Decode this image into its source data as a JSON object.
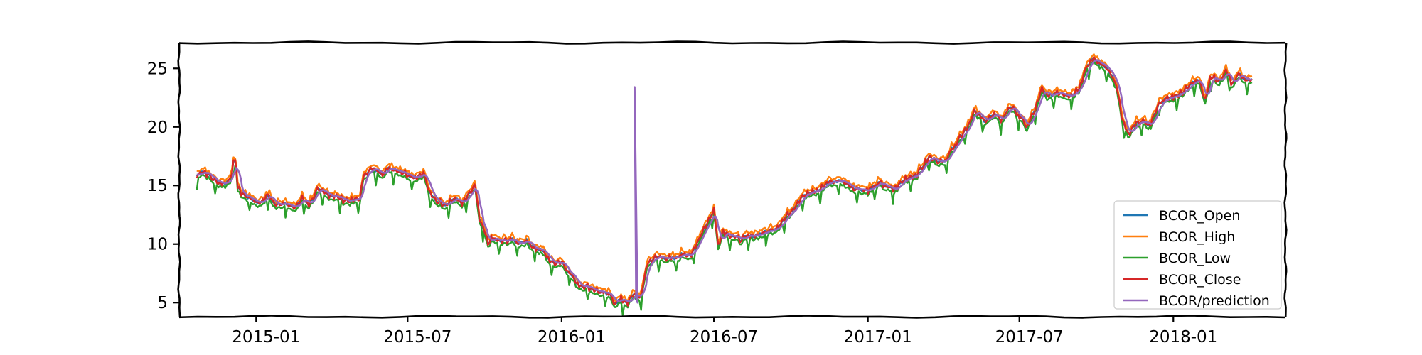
{
  "chart_data": {
    "type": "line",
    "title": "",
    "xlabel": "",
    "ylabel": "",
    "xlim": [
      "2014-10-01",
      "2018-05-15"
    ],
    "ylim": [
      3.8,
      27.2
    ],
    "yticks": [
      5,
      10,
      15,
      20,
      25
    ],
    "xticks": [
      "2015-01",
      "2015-07",
      "2016-01",
      "2016-07",
      "2017-01",
      "2017-07",
      "2018-01"
    ],
    "grid": false,
    "legend_position": "lower-right",
    "series": [
      {
        "name": "BCOR_Open",
        "color": "#1f77b4"
      },
      {
        "name": "BCOR_High",
        "color": "#ff7f0e"
      },
      {
        "name": "BCOR_Low",
        "color": "#2ca02c"
      },
      {
        "name": "BCOR_Close",
        "color": "#d62728"
      },
      {
        "name": "BCOR/prediction",
        "color": "#9467bd"
      }
    ],
    "close_points": [
      [
        "2014-10-22",
        15.8
      ],
      [
        "2014-10-28",
        16.3
      ],
      [
        "2014-11-05",
        15.9
      ],
      [
        "2014-11-15",
        15.3
      ],
      [
        "2014-11-25",
        15.2
      ],
      [
        "2014-12-01",
        15.6
      ],
      [
        "2014-12-05",
        17.0
      ],
      [
        "2014-12-08",
        16.8
      ],
      [
        "2014-12-10",
        14.8
      ],
      [
        "2014-12-15",
        14.3
      ],
      [
        "2014-12-22",
        14.0
      ],
      [
        "2015-01-05",
        13.5
      ],
      [
        "2015-01-15",
        14.2
      ],
      [
        "2015-01-25",
        13.3
      ],
      [
        "2015-02-05",
        13.6
      ],
      [
        "2015-02-15",
        13.0
      ],
      [
        "2015-02-25",
        13.9
      ],
      [
        "2015-03-05",
        13.4
      ],
      [
        "2015-03-15",
        14.6
      ],
      [
        "2015-03-25",
        14.3
      ],
      [
        "2015-04-05",
        14.1
      ],
      [
        "2015-04-15",
        13.8
      ],
      [
        "2015-04-25",
        13.7
      ],
      [
        "2015-05-05",
        13.9
      ],
      [
        "2015-05-10",
        16.0
      ],
      [
        "2015-05-20",
        16.4
      ],
      [
        "2015-06-01",
        16.1
      ],
      [
        "2015-06-10",
        16.5
      ],
      [
        "2015-06-20",
        16.3
      ],
      [
        "2015-06-30",
        16.0
      ],
      [
        "2015-07-10",
        15.7
      ],
      [
        "2015-07-20",
        16.1
      ],
      [
        "2015-07-28",
        14.2
      ],
      [
        "2015-08-05",
        13.7
      ],
      [
        "2015-08-15",
        13.4
      ],
      [
        "2015-08-25",
        13.9
      ],
      [
        "2015-09-05",
        13.5
      ],
      [
        "2015-09-15",
        14.5
      ],
      [
        "2015-09-20",
        14.9
      ],
      [
        "2015-09-25",
        12.0
      ],
      [
        "2015-09-30",
        11.2
      ],
      [
        "2015-10-05",
        10.1
      ],
      [
        "2015-10-10",
        10.5
      ],
      [
        "2015-10-20",
        10.2
      ],
      [
        "2015-11-01",
        10.4
      ],
      [
        "2015-11-10",
        10.1
      ],
      [
        "2015-11-20",
        10.3
      ],
      [
        "2015-12-01",
        9.6
      ],
      [
        "2015-12-10",
        9.4
      ],
      [
        "2015-12-20",
        8.4
      ],
      [
        "2016-01-01",
        8.5
      ],
      [
        "2016-01-10",
        7.6
      ],
      [
        "2016-01-20",
        6.6
      ],
      [
        "2016-01-30",
        6.4
      ],
      [
        "2016-02-10",
        6.1
      ],
      [
        "2016-02-20",
        5.8
      ],
      [
        "2016-02-28",
        5.6
      ],
      [
        "2016-03-05",
        5.0
      ],
      [
        "2016-03-12",
        5.3
      ],
      [
        "2016-03-20",
        5.0
      ],
      [
        "2016-03-28",
        5.7
      ],
      [
        "2016-04-05",
        5.5
      ],
      [
        "2016-04-12",
        8.3
      ],
      [
        "2016-04-20",
        8.8
      ],
      [
        "2016-05-01",
        8.9
      ],
      [
        "2016-05-15",
        8.7
      ],
      [
        "2016-05-25",
        9.2
      ],
      [
        "2016-06-05",
        9.1
      ],
      [
        "2016-06-15",
        10.8
      ],
      [
        "2016-06-25",
        12.1
      ],
      [
        "2016-07-01",
        12.9
      ],
      [
        "2016-07-06",
        10.0
      ],
      [
        "2016-07-12",
        11.1
      ],
      [
        "2016-07-20",
        10.8
      ],
      [
        "2016-08-01",
        10.4
      ],
      [
        "2016-08-15",
        10.7
      ],
      [
        "2016-09-01",
        11.0
      ],
      [
        "2016-09-15",
        11.5
      ],
      [
        "2016-10-01",
        12.8
      ],
      [
        "2016-10-15",
        14.2
      ],
      [
        "2016-11-01",
        14.5
      ],
      [
        "2016-11-15",
        15.3
      ],
      [
        "2016-12-01",
        15.4
      ],
      [
        "2016-12-15",
        14.8
      ],
      [
        "2017-01-01",
        14.6
      ],
      [
        "2017-01-15",
        15.2
      ],
      [
        "2017-02-01",
        14.6
      ],
      [
        "2017-02-15",
        15.6
      ],
      [
        "2017-03-01",
        16.0
      ],
      [
        "2017-03-15",
        17.4
      ],
      [
        "2017-04-01",
        17.0
      ],
      [
        "2017-04-15",
        18.5
      ],
      [
        "2017-05-01",
        20.2
      ],
      [
        "2017-05-08",
        21.3
      ],
      [
        "2017-05-20",
        20.6
      ],
      [
        "2017-06-01",
        21.0
      ],
      [
        "2017-06-10",
        20.6
      ],
      [
        "2017-06-20",
        21.8
      ],
      [
        "2017-07-01",
        20.9
      ],
      [
        "2017-07-10",
        20.0
      ],
      [
        "2017-07-20",
        21.5
      ],
      [
        "2017-07-28",
        23.2
      ],
      [
        "2017-08-05",
        22.6
      ],
      [
        "2017-08-15",
        23.0
      ],
      [
        "2017-09-01",
        22.7
      ],
      [
        "2017-09-10",
        23.3
      ],
      [
        "2017-09-20",
        25.3
      ],
      [
        "2017-09-28",
        25.8
      ],
      [
        "2017-10-05",
        25.4
      ],
      [
        "2017-10-15",
        25.0
      ],
      [
        "2017-10-25",
        23.5
      ],
      [
        "2017-11-01",
        20.6
      ],
      [
        "2017-11-08",
        19.3
      ],
      [
        "2017-11-20",
        20.5
      ],
      [
        "2017-12-05",
        20.2
      ],
      [
        "2017-12-15",
        22.1
      ],
      [
        "2018-01-01",
        22.6
      ],
      [
        "2018-01-10",
        22.9
      ],
      [
        "2018-01-20",
        23.6
      ],
      [
        "2018-02-01",
        24.0
      ],
      [
        "2018-02-08",
        22.4
      ],
      [
        "2018-02-15",
        24.4
      ],
      [
        "2018-02-25",
        23.8
      ],
      [
        "2018-03-05",
        24.9
      ],
      [
        "2018-03-12",
        23.7
      ],
      [
        "2018-03-20",
        24.5
      ],
      [
        "2018-04-01",
        23.9
      ],
      [
        "2018-04-05",
        24.0
      ]
    ],
    "prediction_spike": {
      "x": "2016-03-30",
      "y_max": 23.4
    }
  }
}
